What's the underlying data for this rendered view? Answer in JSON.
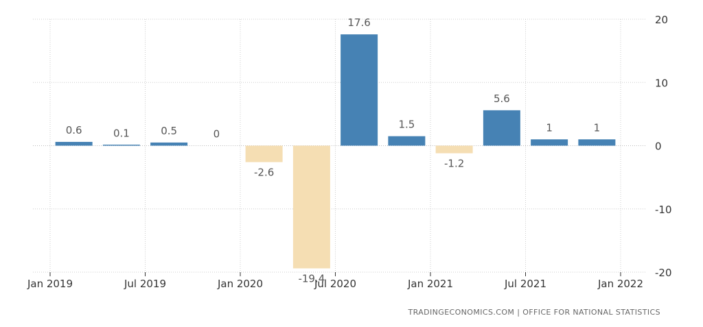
{
  "chart_data": {
    "type": "bar",
    "title": "",
    "xlabel": "",
    "ylabel": "",
    "categories": [
      "Q1 2019",
      "Q2 2019",
      "Q3 2019",
      "Q4 2019",
      "Q1 2020",
      "Q2 2020",
      "Q3 2020",
      "Q4 2020",
      "Q1 2021",
      "Q2 2021",
      "Q3 2021",
      "Q4 2021"
    ],
    "values": [
      0.6,
      0.1,
      0.5,
      0,
      -2.6,
      -19.4,
      17.6,
      1.5,
      -1.2,
      5.6,
      1,
      1
    ],
    "value_labels": [
      "0.6",
      "0.1",
      "0.5",
      "0",
      "-2.6",
      "-19.4",
      "17.6",
      "1.5",
      "-1.2",
      "5.6",
      "1",
      "1"
    ],
    "ylim": [
      -20,
      20
    ],
    "yticks": [
      20,
      10,
      0,
      -10,
      -20
    ],
    "y_axis_position": "right",
    "x_tick_labels": [
      "Jan 2019",
      "Jul 2019",
      "Jan 2020",
      "Jul 2020",
      "Jan 2021",
      "Jul 2021",
      "Jan 2022"
    ],
    "grid": true,
    "colors": {
      "positive": "#4682b4",
      "negative": "#f5deb3",
      "grid": "#cccccc"
    }
  },
  "footer": {
    "source": "TRADINGECONOMICS.COM  |  OFFICE FOR NATIONAL STATISTICS"
  }
}
